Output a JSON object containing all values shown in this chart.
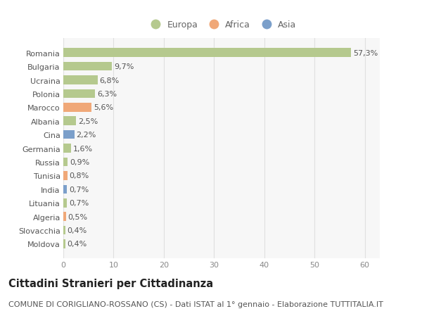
{
  "countries": [
    "Romania",
    "Bulgaria",
    "Ucraina",
    "Polonia",
    "Marocco",
    "Albania",
    "Cina",
    "Germania",
    "Russia",
    "Tunisia",
    "India",
    "Lituania",
    "Algeria",
    "Slovacchia",
    "Moldova"
  ],
  "values": [
    57.3,
    9.7,
    6.8,
    6.3,
    5.6,
    2.5,
    2.2,
    1.6,
    0.9,
    0.8,
    0.7,
    0.7,
    0.5,
    0.4,
    0.4
  ],
  "labels": [
    "57,3%",
    "9,7%",
    "6,8%",
    "6,3%",
    "5,6%",
    "2,5%",
    "2,2%",
    "1,6%",
    "0,9%",
    "0,8%",
    "0,7%",
    "0,7%",
    "0,5%",
    "0,4%",
    "0,4%"
  ],
  "continents": [
    "Europa",
    "Europa",
    "Europa",
    "Europa",
    "Africa",
    "Europa",
    "Asia",
    "Europa",
    "Europa",
    "Africa",
    "Asia",
    "Europa",
    "Africa",
    "Europa",
    "Europa"
  ],
  "colors": {
    "Europa": "#b5c98e",
    "Africa": "#f0a878",
    "Asia": "#7b9fca"
  },
  "xlim": [
    0,
    63
  ],
  "xticks": [
    0,
    10,
    20,
    30,
    40,
    50,
    60
  ],
  "background_color": "#ffffff",
  "plot_bg_color": "#f7f7f7",
  "grid_color": "#e0e0e0",
  "title": "Cittadini Stranieri per Cittadinanza",
  "subtitle": "COMUNE DI CORIGLIANO-ROSSANO (CS) - Dati ISTAT al 1° gennaio - Elaborazione TUTTITALIA.IT",
  "title_fontsize": 10.5,
  "subtitle_fontsize": 8,
  "label_fontsize": 8,
  "tick_fontsize": 8,
  "legend_fontsize": 9
}
